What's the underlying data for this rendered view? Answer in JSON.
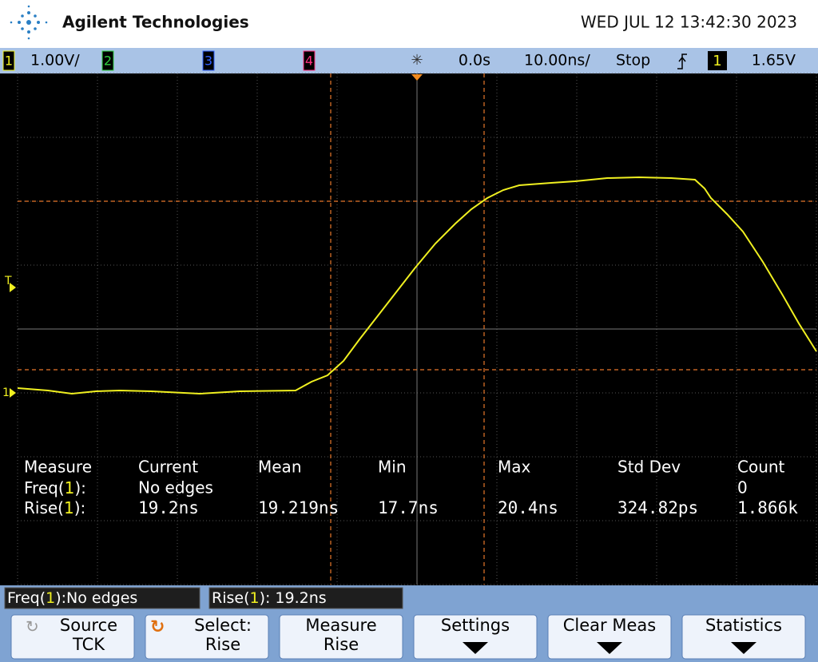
{
  "header": {
    "brand": "Agilent Technologies",
    "datetime": "WED JUL 12 13:42:30 2023"
  },
  "status": {
    "channels": [
      "1",
      "2",
      "3",
      "4"
    ],
    "ch1_scale": "1.00V/",
    "time_offset": "0.0s",
    "time_scale": "10.00ns/",
    "run_state": "Stop",
    "trigger_source": "1",
    "trigger_level": "1.65V"
  },
  "markers": {
    "trigger": "T",
    "ground": "1"
  },
  "measurements": {
    "headers": [
      "Measure",
      "Current",
      "Mean",
      "Min",
      "Max",
      "Std Dev",
      "Count"
    ],
    "rows": [
      {
        "label": {
          "prefix": "Freq(",
          "channel": "1",
          "suffix": "):"
        },
        "current": "No edges",
        "count": "0"
      },
      {
        "label": {
          "prefix": "Rise(",
          "channel": "1",
          "suffix": "):"
        },
        "current": "19.2ns",
        "mean": "19.219ns",
        "min": "17.7ns",
        "max": "20.4ns",
        "std_dev": "324.82ps",
        "count": "1.866k"
      }
    ]
  },
  "readouts": [
    {
      "prefix": "Freq(",
      "channel": "1",
      "suffix": "):No edges"
    },
    {
      "prefix": "Rise(",
      "channel": "1",
      "suffix": "): 19.2ns"
    }
  ],
  "softkeys": [
    {
      "top": "Source",
      "bottom": "TCK"
    },
    {
      "top": "Select:",
      "bottom": "Rise"
    },
    {
      "top": "Measure",
      "bottom": "Rise"
    },
    {
      "top": "Settings"
    },
    {
      "top": "Clear Meas"
    },
    {
      "top": "Statistics"
    }
  ]
}
